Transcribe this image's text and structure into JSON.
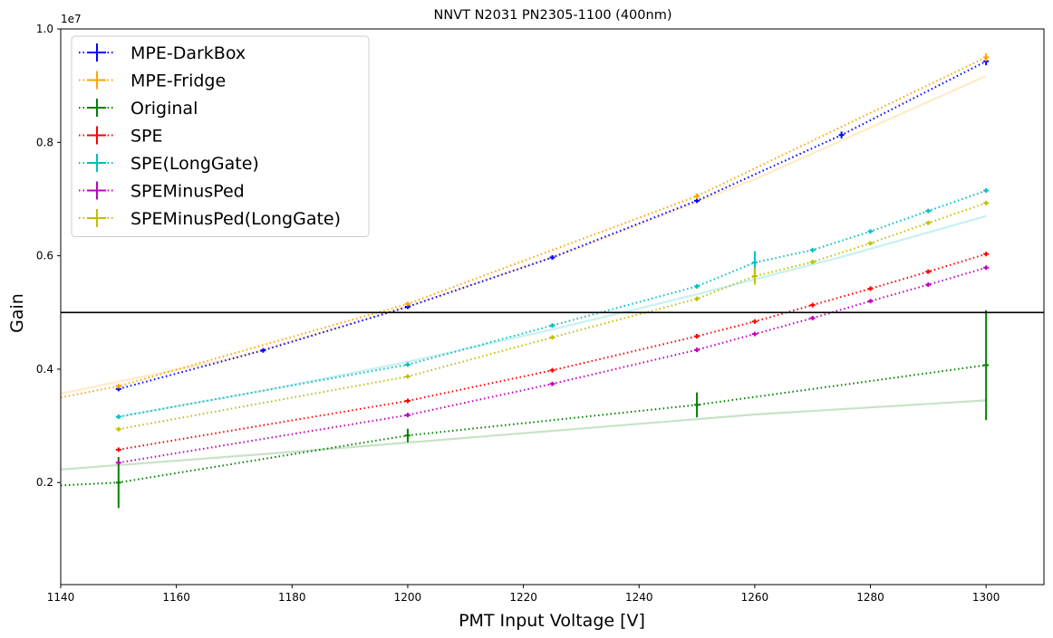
{
  "chart_data": {
    "type": "line",
    "title": "NNVT N2031 PN2305-1100 (400nm)",
    "xlabel": "PMT Input Voltage [V]",
    "ylabel": "Gain",
    "y_offset_label": "1e7",
    "xlim": [
      1140,
      1310
    ],
    "ylim": [
      0.02,
      1.0
    ],
    "x_ticks": [
      1140,
      1160,
      1180,
      1200,
      1220,
      1240,
      1260,
      1280,
      1300
    ],
    "y_ticks": [
      0.2,
      0.4,
      0.6,
      0.8,
      1.0
    ],
    "x_tick_labels": [
      "1140",
      "1160",
      "1180",
      "1200",
      "1220",
      "1240",
      "1260",
      "1280",
      "1300"
    ],
    "y_tick_labels": [
      "0.2",
      "0.4",
      "0.6",
      "0.8",
      "1.0"
    ],
    "hline": 0.5,
    "grid": false,
    "legend_position": "upper-left",
    "series": [
      {
        "name": "MPE-DarkBox",
        "color": "#0000ff",
        "points": [
          [
            1150,
            0.365,
            0.004
          ],
          [
            1175,
            0.433,
            0.003
          ],
          [
            1200,
            0.51,
            0.003
          ],
          [
            1225,
            0.597,
            0.003
          ],
          [
            1250,
            0.697,
            0.004
          ],
          [
            1275,
            0.813,
            0.006
          ],
          [
            1300,
            0.943,
            0.007
          ]
        ],
        "fit_line": [
          [
            1150,
            0.365
          ],
          [
            1175,
            0.433
          ],
          [
            1200,
            0.51
          ],
          [
            1225,
            0.597
          ],
          [
            1250,
            0.697
          ],
          [
            1275,
            0.813
          ],
          [
            1300,
            0.943
          ]
        ],
        "fit_curve": []
      },
      {
        "name": "MPE-Fridge",
        "color": "#ffa500",
        "points": [
          [
            1150,
            0.37,
            0.003
          ],
          [
            1200,
            0.515,
            0.003
          ],
          [
            1250,
            0.705,
            0.005
          ],
          [
            1300,
            0.95,
            0.007
          ]
        ],
        "fit_line": [
          [
            1140,
            0.35
          ],
          [
            1150,
            0.37
          ],
          [
            1200,
            0.515
          ],
          [
            1250,
            0.705
          ],
          [
            1300,
            0.95
          ]
        ],
        "fit_curve": [
          [
            1140,
            0.357
          ],
          [
            1170,
            0.42
          ],
          [
            1200,
            0.51
          ],
          [
            1230,
            0.615
          ],
          [
            1260,
            0.735
          ],
          [
            1300,
            0.917
          ]
        ]
      },
      {
        "name": "Original",
        "color": "#008000",
        "points": [
          [
            1150,
            0.2,
            0.045
          ],
          [
            1200,
            0.283,
            0.012
          ],
          [
            1250,
            0.337,
            0.022
          ],
          [
            1300,
            0.407,
            0.097
          ]
        ],
        "fit_line": [
          [
            1140,
            0.195
          ],
          [
            1150,
            0.2
          ],
          [
            1200,
            0.283
          ],
          [
            1250,
            0.337
          ],
          [
            1300,
            0.407
          ]
        ],
        "fit_curve": [
          [
            1140,
            0.223
          ],
          [
            1180,
            0.254
          ],
          [
            1220,
            0.287
          ],
          [
            1260,
            0.32
          ],
          [
            1300,
            0.345
          ]
        ]
      },
      {
        "name": "SPE",
        "color": "#ff0000",
        "points": [
          [
            1150,
            0.258,
            0.002
          ],
          [
            1200,
            0.344,
            0.002
          ],
          [
            1225,
            0.398,
            0.002
          ],
          [
            1250,
            0.458,
            0.002
          ],
          [
            1260,
            0.484,
            0.002
          ],
          [
            1270,
            0.513,
            0.002
          ],
          [
            1280,
            0.542,
            0.002
          ],
          [
            1290,
            0.572,
            0.002
          ],
          [
            1300,
            0.603,
            0.003
          ]
        ],
        "fit_line": [
          [
            1150,
            0.258
          ],
          [
            1200,
            0.344
          ],
          [
            1225,
            0.398
          ],
          [
            1250,
            0.458
          ],
          [
            1260,
            0.484
          ],
          [
            1270,
            0.513
          ],
          [
            1280,
            0.542
          ],
          [
            1290,
            0.572
          ],
          [
            1300,
            0.603
          ]
        ],
        "fit_curve": []
      },
      {
        "name": "SPE(LongGate)",
        "color": "#00bfbf",
        "points": [
          [
            1150,
            0.316,
            0.002
          ],
          [
            1200,
            0.408,
            0.002
          ],
          [
            1225,
            0.477,
            0.002
          ],
          [
            1250,
            0.546,
            0.002
          ],
          [
            1260,
            0.588,
            0.02
          ],
          [
            1270,
            0.61,
            0.002
          ],
          [
            1280,
            0.643,
            0.002
          ],
          [
            1290,
            0.679,
            0.002
          ],
          [
            1300,
            0.715,
            0.003
          ]
        ],
        "fit_line": [
          [
            1150,
            0.316
          ],
          [
            1200,
            0.408
          ],
          [
            1225,
            0.477
          ],
          [
            1250,
            0.546
          ],
          [
            1260,
            0.588
          ],
          [
            1270,
            0.61
          ],
          [
            1280,
            0.643
          ],
          [
            1290,
            0.679
          ],
          [
            1300,
            0.715
          ]
        ],
        "fit_curve": [
          [
            1150,
            0.316
          ],
          [
            1175,
            0.362
          ],
          [
            1200,
            0.413
          ],
          [
            1225,
            0.47
          ],
          [
            1250,
            0.532
          ],
          [
            1275,
            0.598
          ],
          [
            1300,
            0.67
          ]
        ]
      },
      {
        "name": "SPEMinusPed",
        "color": "#bf00bf",
        "points": [
          [
            1150,
            0.235,
            0.002
          ],
          [
            1200,
            0.319,
            0.002
          ],
          [
            1225,
            0.374,
            0.002
          ],
          [
            1250,
            0.434,
            0.002
          ],
          [
            1260,
            0.462,
            0.002
          ],
          [
            1270,
            0.49,
            0.002
          ],
          [
            1280,
            0.52,
            0.002
          ],
          [
            1290,
            0.549,
            0.002
          ],
          [
            1300,
            0.579,
            0.003
          ]
        ],
        "fit_line": [
          [
            1150,
            0.235
          ],
          [
            1200,
            0.319
          ],
          [
            1225,
            0.374
          ],
          [
            1250,
            0.434
          ],
          [
            1260,
            0.462
          ],
          [
            1270,
            0.49
          ],
          [
            1280,
            0.52
          ],
          [
            1290,
            0.549
          ],
          [
            1300,
            0.579
          ]
        ],
        "fit_curve": []
      },
      {
        "name": "SPEMinusPed(LongGate)",
        "color": "#bfbf00",
        "points": [
          [
            1150,
            0.294,
            0.002
          ],
          [
            1200,
            0.387,
            0.002
          ],
          [
            1225,
            0.456,
            0.002
          ],
          [
            1250,
            0.524,
            0.002
          ],
          [
            1260,
            0.564,
            0.015
          ],
          [
            1270,
            0.589,
            0.002
          ],
          [
            1280,
            0.622,
            0.002
          ],
          [
            1290,
            0.658,
            0.002
          ],
          [
            1300,
            0.693,
            0.003
          ]
        ],
        "fit_line": [
          [
            1150,
            0.294
          ],
          [
            1200,
            0.387
          ],
          [
            1225,
            0.456
          ],
          [
            1250,
            0.524
          ],
          [
            1260,
            0.564
          ],
          [
            1270,
            0.589
          ],
          [
            1280,
            0.622
          ],
          [
            1290,
            0.658
          ],
          [
            1300,
            0.693
          ]
        ],
        "fit_curve": []
      }
    ]
  }
}
